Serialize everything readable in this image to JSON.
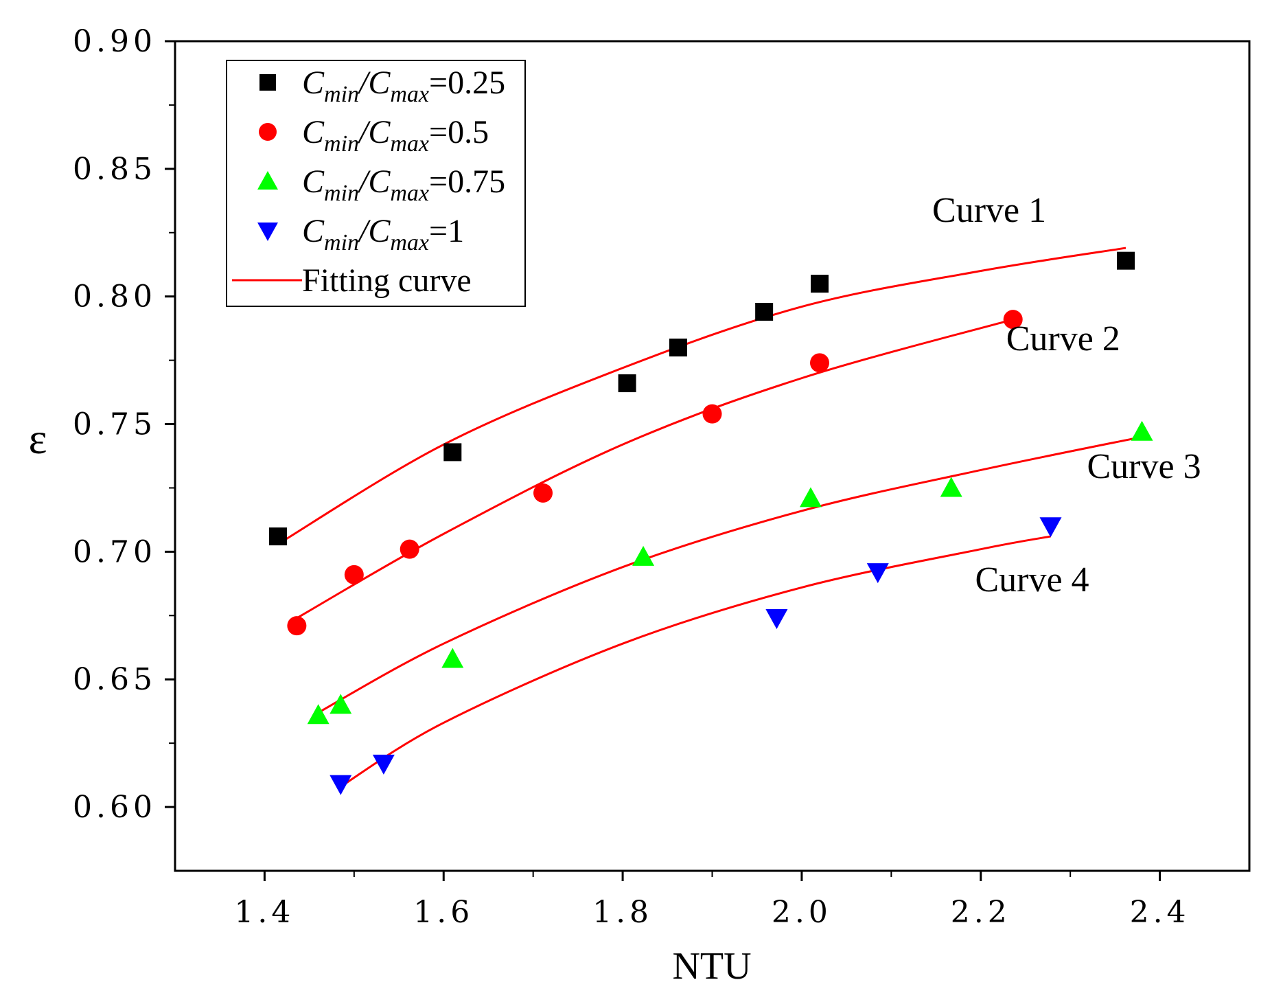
{
  "chart_data": {
    "type": "scatter",
    "title": "",
    "xlabel": "NTU",
    "ylabel": "ε",
    "xlim": [
      1.3,
      2.5
    ],
    "ylim": [
      0.575,
      0.9
    ],
    "xticks": [
      1.4,
      1.6,
      1.8,
      2.0,
      2.2,
      2.4
    ],
    "xtick_labels": [
      "1.4",
      "1.6",
      "1.8",
      "2.0",
      "2.2",
      "2.4"
    ],
    "yticks": [
      0.6,
      0.65,
      0.7,
      0.75,
      0.8,
      0.85,
      0.9
    ],
    "ytick_labels": [
      "0.60",
      "0.65",
      "0.70",
      "0.75",
      "0.80",
      "0.85",
      "0.90"
    ],
    "grid": false,
    "legend_position": "top-left",
    "series": [
      {
        "name": "Cmin/Cmax=0.25",
        "ratio_label": "=0.25",
        "marker": "square",
        "color": "#000000",
        "x": [
          1.415,
          1.61,
          1.805,
          1.862,
          1.958,
          2.02,
          2.362
        ],
        "y": [
          0.706,
          0.739,
          0.766,
          0.78,
          0.794,
          0.805,
          0.814
        ]
      },
      {
        "name": "Cmin/Cmax=0.5",
        "ratio_label": "=0.5",
        "marker": "circle",
        "color": "#ff0000",
        "x": [
          1.436,
          1.5,
          1.562,
          1.711,
          1.9,
          2.02,
          2.236
        ],
        "y": [
          0.671,
          0.691,
          0.701,
          0.723,
          0.754,
          0.774,
          0.791
        ]
      },
      {
        "name": "Cmin/Cmax=0.75",
        "ratio_label": "=0.75",
        "marker": "triangle-up",
        "color": "#00ff00",
        "x": [
          1.46,
          1.485,
          1.61,
          1.823,
          2.01,
          2.167,
          2.38
        ],
        "y": [
          0.636,
          0.64,
          0.658,
          0.698,
          0.721,
          0.725,
          0.747
        ]
      },
      {
        "name": "Cmin/Cmax=1",
        "ratio_label": "=1",
        "marker": "triangle-down",
        "color": "#0000ff",
        "x": [
          1.485,
          1.533,
          1.972,
          2.085,
          2.278
        ],
        "y": [
          0.609,
          0.617,
          0.674,
          0.692,
          0.71
        ]
      }
    ],
    "fitting_curves": [
      {
        "label": "Curve 1",
        "x": [
          1.415,
          1.6,
          1.8,
          2.0,
          2.2,
          2.362
        ],
        "y": [
          0.703,
          0.742,
          0.772,
          0.796,
          0.81,
          0.819
        ]
      },
      {
        "label": "Curve 2",
        "x": [
          1.436,
          1.6,
          1.8,
          2.0,
          2.236
        ],
        "y": [
          0.674,
          0.707,
          0.742,
          0.768,
          0.791
        ]
      },
      {
        "label": "Curve 3",
        "x": [
          1.46,
          1.6,
          1.8,
          2.0,
          2.2,
          2.38
        ],
        "y": [
          0.637,
          0.664,
          0.694,
          0.716,
          0.732,
          0.745
        ]
      },
      {
        "label": "Curve 4",
        "x": [
          1.485,
          1.6,
          1.8,
          2.0,
          2.2,
          2.278
        ],
        "y": [
          0.608,
          0.633,
          0.664,
          0.686,
          0.701,
          0.706
        ]
      }
    ],
    "fit_color": "#ff0000",
    "legend": {
      "c_letter": "C",
      "sub_min": "min",
      "sub_max": "max",
      "slash": "/",
      "fitting_label": "Fitting curve"
    }
  }
}
